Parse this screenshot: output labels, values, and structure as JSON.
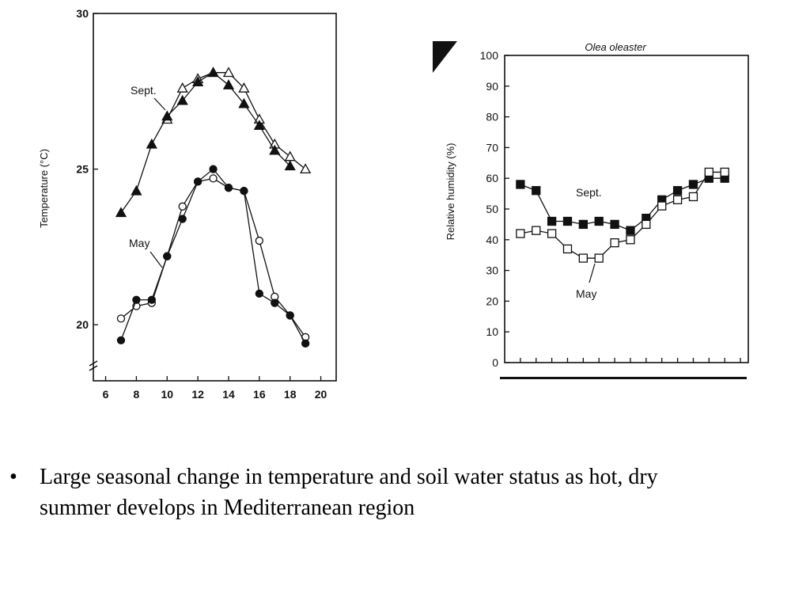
{
  "chart_data": [
    {
      "type": "line",
      "title": "",
      "ylabel": "Temperature (°C)",
      "xlabel": "",
      "xlim": [
        5.2,
        21.0
      ],
      "ylim": [
        18.2,
        30
      ],
      "x_ticks": [
        6,
        8,
        10,
        12,
        14,
        16,
        18,
        20
      ],
      "y_ticks": [
        20,
        25,
        30
      ],
      "grid": false,
      "series": [
        {
          "name": "Sept.",
          "marker": "triangle-open",
          "x": [
            10,
            11,
            12,
            13,
            14,
            15,
            16,
            17,
            18,
            19
          ],
          "y": [
            26.6,
            27.6,
            27.9,
            28.1,
            28.1,
            27.6,
            26.6,
            25.8,
            25.4,
            25.0
          ]
        },
        {
          "name": "Sept.",
          "marker": "triangle-filled",
          "x": [
            7,
            8,
            9,
            10,
            11,
            12,
            13,
            14,
            15,
            16,
            17,
            18
          ],
          "y": [
            23.6,
            24.3,
            25.8,
            26.7,
            27.2,
            27.8,
            28.1,
            27.7,
            27.1,
            26.4,
            25.6,
            25.1
          ]
        },
        {
          "name": "May",
          "marker": "circle-open",
          "x": [
            7,
            8,
            9,
            10,
            11,
            12,
            13,
            14,
            15,
            16,
            17,
            18,
            19
          ],
          "y": [
            20.2,
            20.6,
            20.7,
            22.2,
            23.8,
            24.6,
            24.7,
            24.4,
            24.3,
            22.7,
            20.9,
            20.3,
            19.6
          ]
        },
        {
          "name": "May",
          "marker": "circle-filled",
          "x": [
            7,
            8,
            9,
            10,
            11,
            12,
            13,
            14,
            15,
            16,
            17,
            18,
            19
          ],
          "y": [
            19.5,
            20.8,
            20.8,
            22.2,
            23.4,
            24.6,
            25.0,
            24.4,
            24.3,
            21.0,
            20.7,
            20.3,
            19.4
          ]
        }
      ],
      "annotations": [
        "Sept.",
        "May"
      ]
    },
    {
      "type": "line",
      "title": "Olea oleaster",
      "ylabel": "Relative humidity (%)",
      "xlabel": "",
      "xlim": [
        0,
        15.5
      ],
      "ylim": [
        0,
        100
      ],
      "y_ticks": [
        0,
        10,
        20,
        30,
        40,
        50,
        60,
        70,
        80,
        90,
        100
      ],
      "grid": false,
      "series": [
        {
          "name": "Sept.",
          "marker": "square-filled",
          "x": [
            1,
            2,
            3,
            4,
            5,
            6,
            7,
            8,
            9,
            10,
            11,
            12,
            13,
            14
          ],
          "y": [
            58,
            56,
            46,
            46,
            45,
            46,
            45,
            43,
            47,
            53,
            56,
            58,
            60,
            60
          ]
        },
        {
          "name": "May",
          "marker": "square-open",
          "x": [
            1,
            2,
            3,
            4,
            5,
            6,
            7,
            8,
            9,
            10,
            11,
            12,
            13,
            14
          ],
          "y": [
            42,
            43,
            42,
            37,
            34,
            34,
            39,
            40,
            45,
            51,
            53,
            54,
            62,
            62
          ]
        }
      ],
      "annotations": [
        "Sept.",
        "May"
      ]
    }
  ],
  "bullet": {
    "symbol": "•",
    "text": "Large seasonal change in temperature and soil water status as hot, dry summer develops in Mediterranean region"
  }
}
